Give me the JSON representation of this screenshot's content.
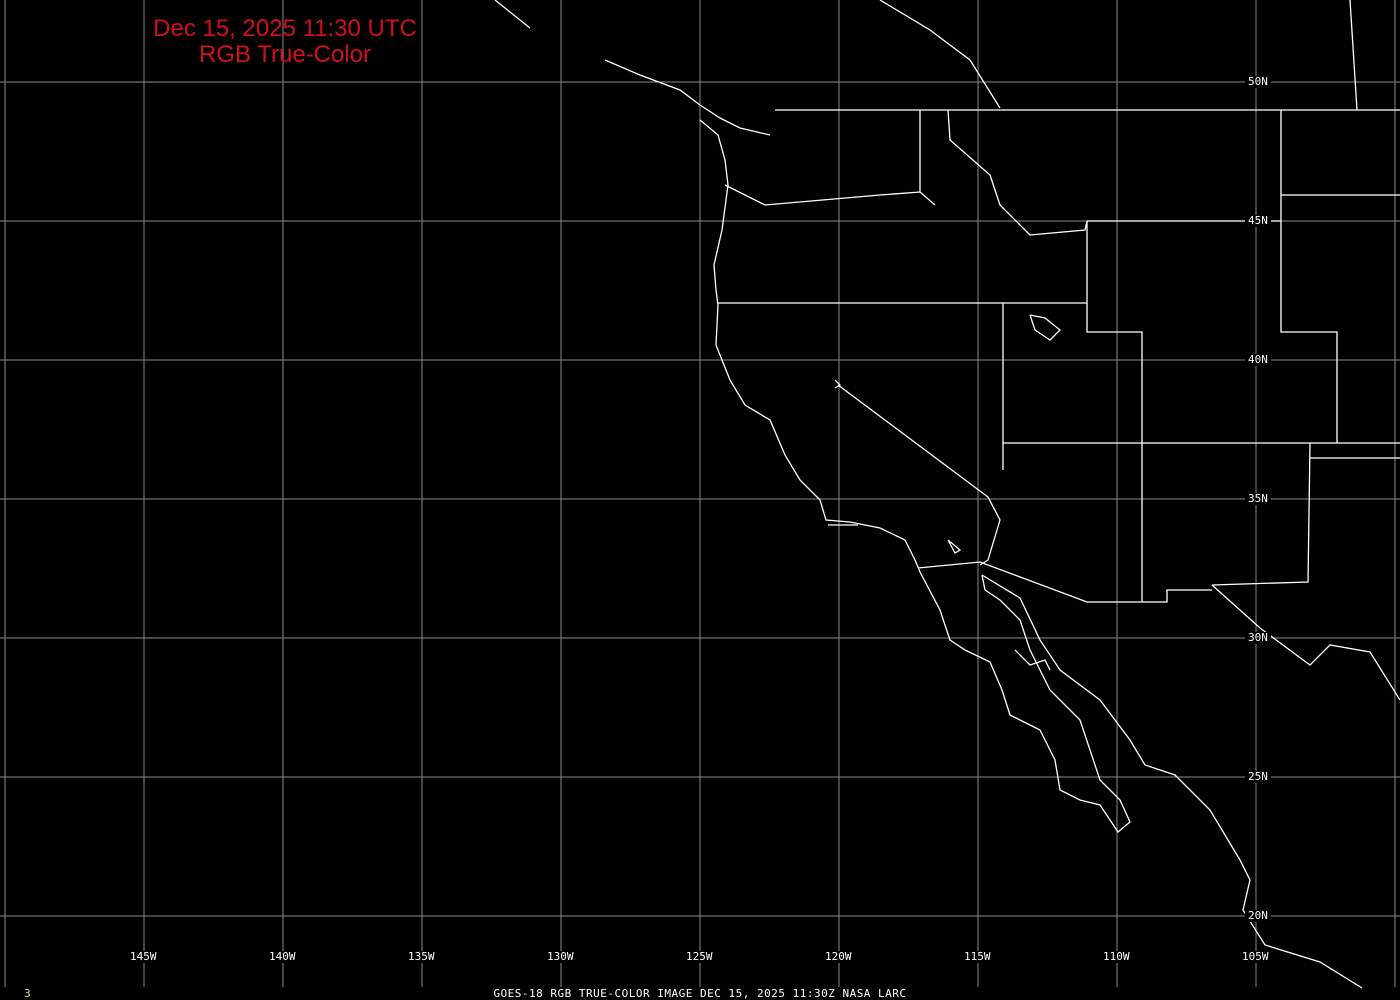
{
  "title": {
    "line1": "Dec 15, 2025 11:30 UTC",
    "line2": "RGB True-Color",
    "color": "#d0101a"
  },
  "latitude_labels": [
    "50N",
    "45N",
    "40N",
    "35N",
    "30N",
    "25N",
    "20N"
  ],
  "longitude_labels": [
    "145W",
    "140W",
    "135W",
    "130W",
    "125W",
    "120W",
    "115W",
    "110W",
    "105W"
  ],
  "footer": {
    "caption": "GOES-18 RGB TRUE-COLOR IMAGE   DEC 15, 2025 11:30Z    NASA LARC",
    "frame_number": "3"
  },
  "colors": {
    "background": "#000000",
    "grid": "#8a8a8a",
    "boundaries": "#ffffff",
    "frame_number": "#e8e05a"
  }
}
